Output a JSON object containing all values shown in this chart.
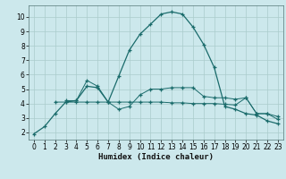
{
  "xlabel": "Humidex (Indice chaleur)",
  "bg_color": "#cce8ec",
  "grid_color": "#aacccc",
  "line_color": "#1a6b6b",
  "xlim": [
    -0.5,
    23.5
  ],
  "ylim": [
    1.5,
    10.8
  ],
  "yticks": [
    2,
    3,
    4,
    5,
    6,
    7,
    8,
    9,
    10
  ],
  "xticks": [
    0,
    1,
    2,
    3,
    4,
    5,
    6,
    7,
    8,
    9,
    10,
    11,
    12,
    13,
    14,
    15,
    16,
    17,
    18,
    19,
    20,
    21,
    22,
    23
  ],
  "line1_x": [
    0,
    1,
    2,
    3,
    4,
    5,
    6,
    7,
    8,
    9,
    10,
    11,
    12,
    13,
    14,
    15,
    16,
    17,
    18,
    19,
    20,
    21,
    22,
    23
  ],
  "line1_y": [
    1.9,
    2.4,
    3.3,
    4.1,
    4.2,
    5.2,
    5.1,
    4.1,
    5.9,
    7.7,
    8.8,
    9.5,
    10.2,
    10.35,
    10.2,
    9.3,
    8.1,
    6.5,
    3.8,
    3.6,
    3.3,
    3.2,
    2.8,
    2.6
  ],
  "line2_x": [
    2,
    3,
    4,
    5,
    6,
    7,
    8,
    9,
    10,
    11,
    12,
    13,
    14,
    15,
    16,
    17,
    18,
    19,
    20,
    21,
    22,
    23
  ],
  "line2_y": [
    4.1,
    4.1,
    4.1,
    4.1,
    4.1,
    4.1,
    4.1,
    4.1,
    4.1,
    4.1,
    4.1,
    4.05,
    4.05,
    4.0,
    4.0,
    4.0,
    3.95,
    3.9,
    4.4,
    3.3,
    3.3,
    2.9
  ],
  "line3_x": [
    3,
    4,
    5,
    6,
    7,
    8,
    9,
    10,
    11,
    12,
    13,
    14,
    15,
    16,
    17,
    18,
    19,
    20,
    21,
    22,
    23
  ],
  "line3_y": [
    4.2,
    4.2,
    5.6,
    5.2,
    4.1,
    3.6,
    3.8,
    4.6,
    5.0,
    5.0,
    5.1,
    5.1,
    5.1,
    4.5,
    4.4,
    4.4,
    4.3,
    4.4,
    3.3,
    3.3,
    3.1
  ]
}
